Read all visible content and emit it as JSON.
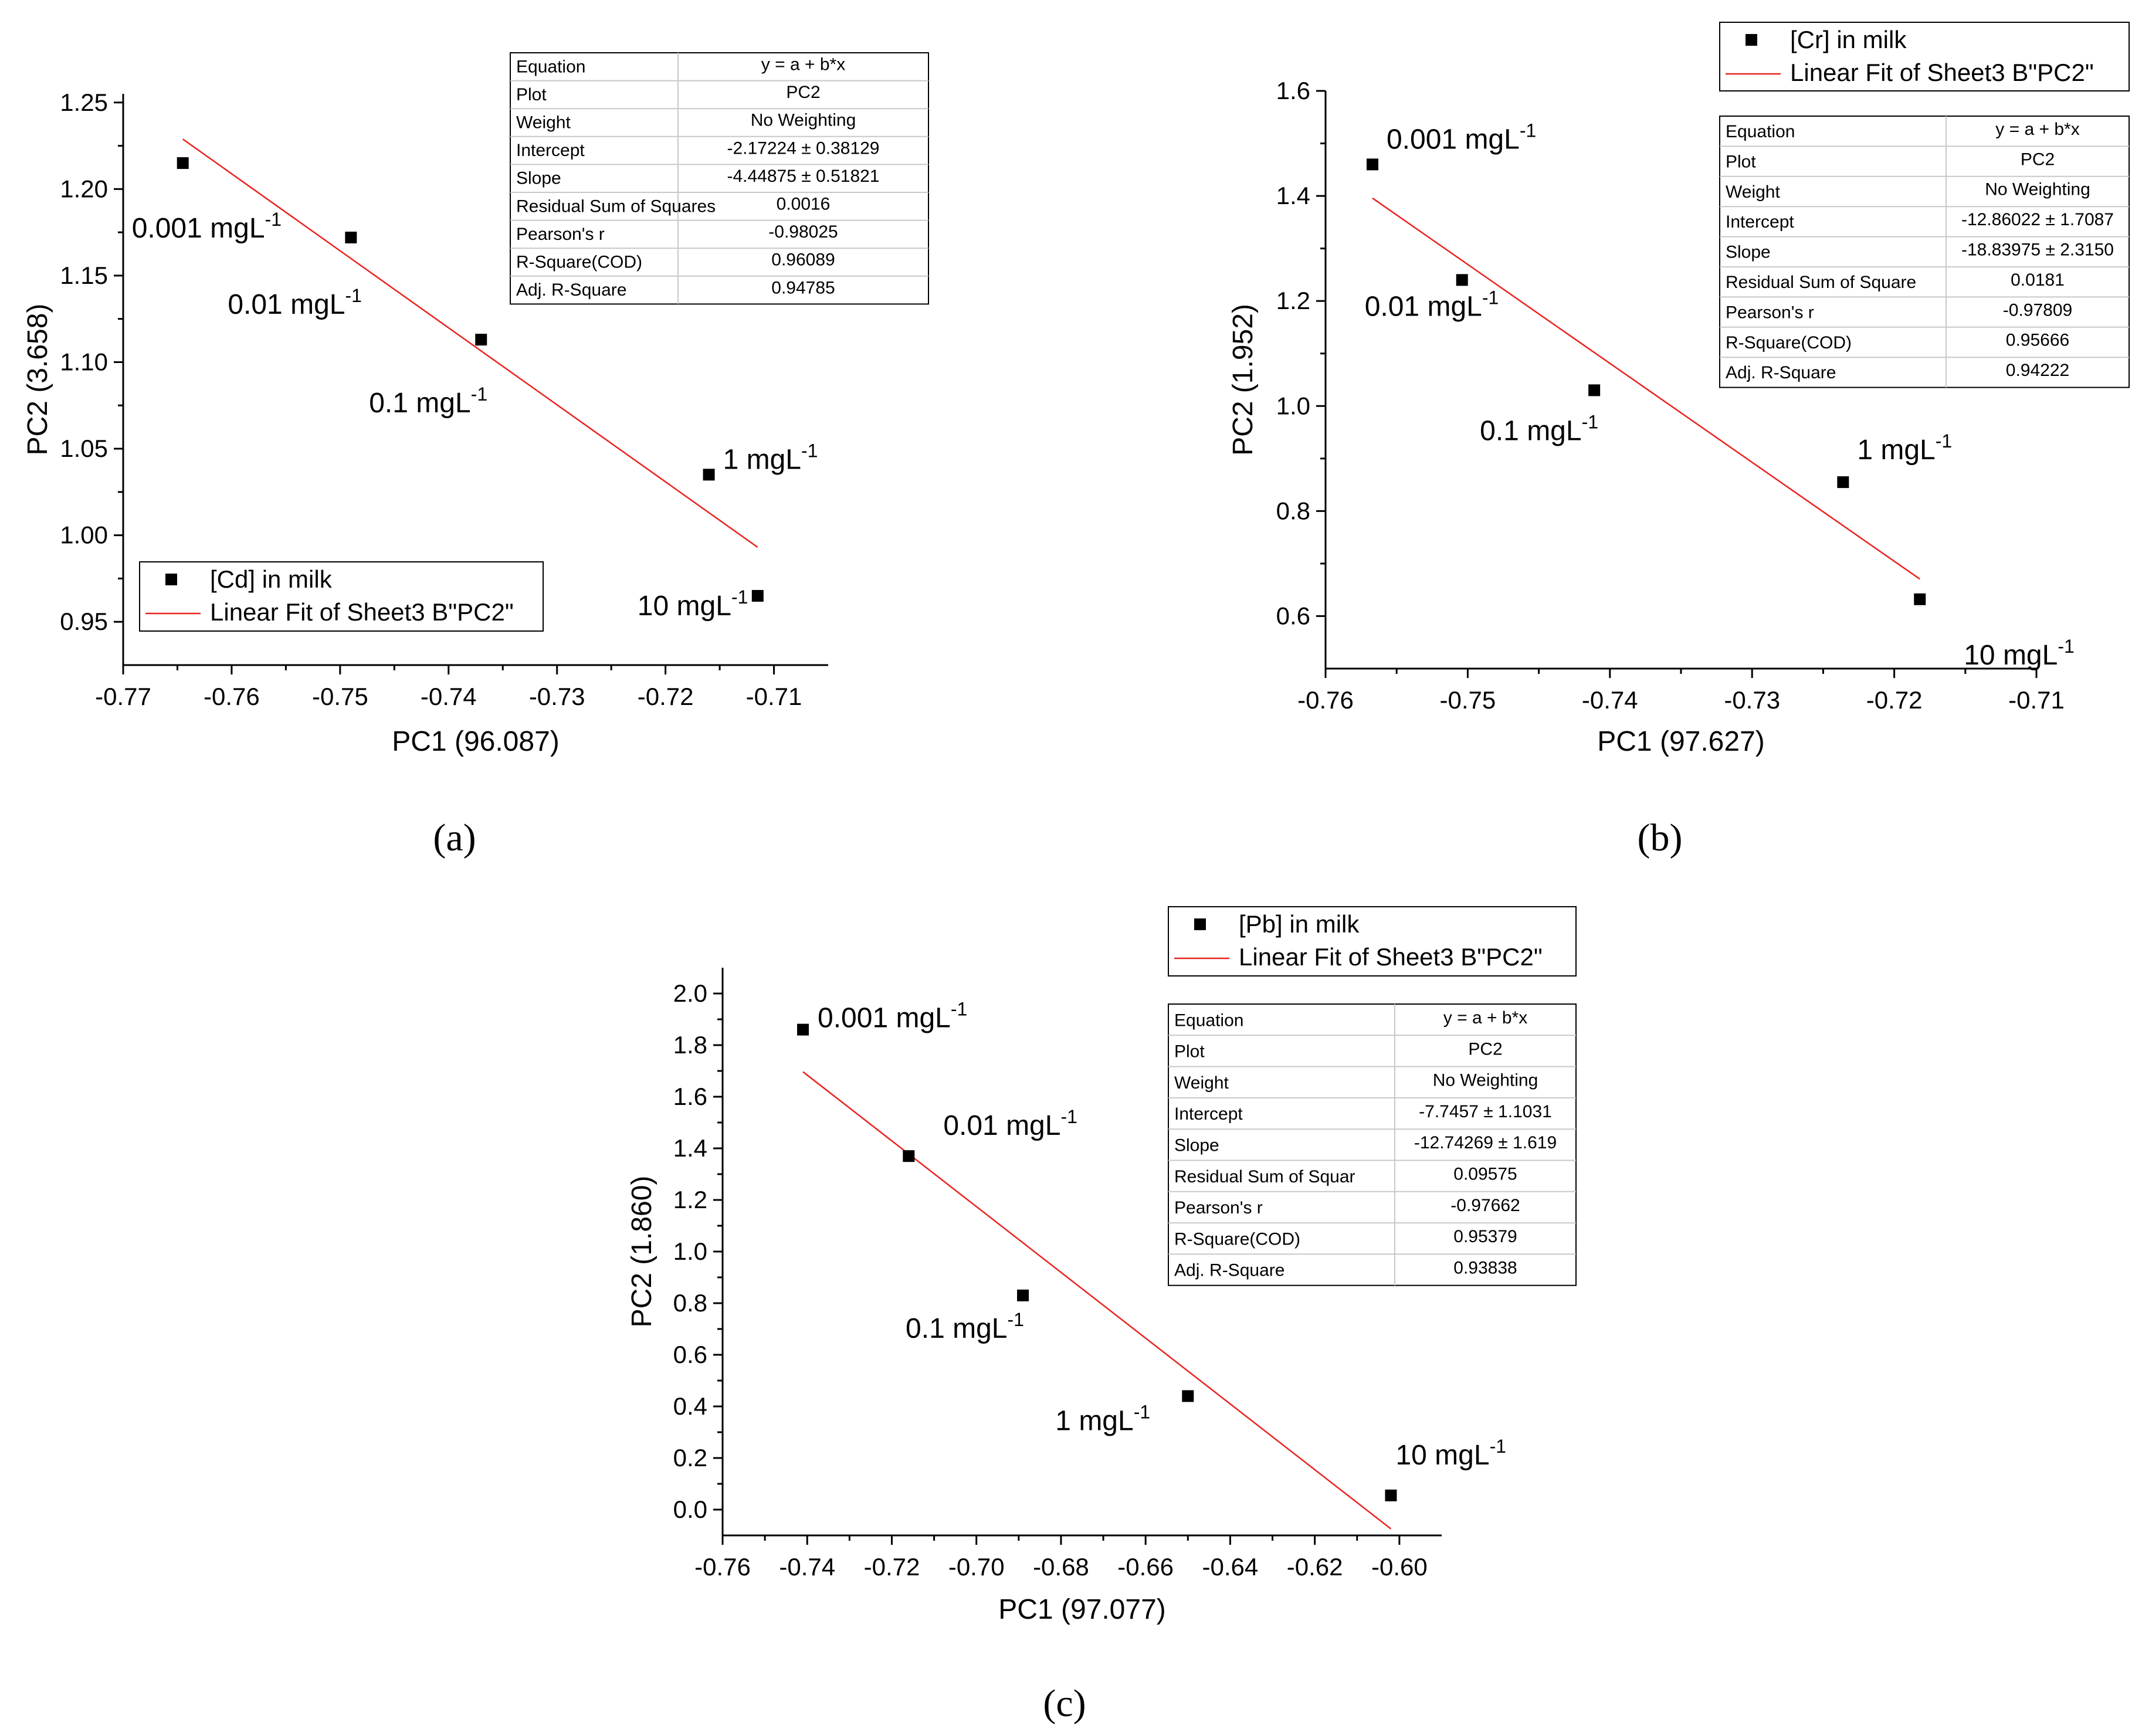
{
  "chart_data": [
    {
      "type": "scatter",
      "panel_label": "(a)",
      "xlabel": "PC1 (96.087)",
      "ylabel": "PC2 (3.658)",
      "xlim": [
        -0.77,
        -0.705
      ],
      "ylim": [
        0.925,
        1.255
      ],
      "xticks": [
        -0.77,
        -0.76,
        -0.75,
        -0.74,
        -0.73,
        -0.72,
        -0.71
      ],
      "xtick_labels": [
        "-0.77",
        "-0.76",
        "-0.75",
        "-0.74",
        "-0.73",
        "-0.72",
        "-0.71"
      ],
      "yticks": [
        0.95,
        1.0,
        1.05,
        1.1,
        1.15,
        1.2,
        1.25
      ],
      "ytick_labels": [
        "0.95",
        "1.00",
        "1.05",
        "1.10",
        "1.15",
        "1.20",
        "1.25"
      ],
      "points": [
        {
          "x": -0.7645,
          "y": 1.215,
          "label": "0.001 mgL",
          "sup": "-1"
        },
        {
          "x": -0.749,
          "y": 1.172,
          "label": "0.01 mgL",
          "sup": "-1"
        },
        {
          "x": -0.737,
          "y": 1.113,
          "label": "0.1 mgL",
          "sup": "-1"
        },
        {
          "x": -0.716,
          "y": 1.035,
          "label": "1 mgL",
          "sup": "-1"
        },
        {
          "x": -0.7115,
          "y": 0.965,
          "label": "10 mgL",
          "sup": "-1"
        }
      ],
      "fit": {
        "x_start": -0.7645,
        "x_end": -0.7115,
        "intercept": -2.17224,
        "slope": -4.44875
      },
      "legend": {
        "series": "[Cd] in milk",
        "fit": "Linear Fit of Sheet3 B\"PC2\""
      },
      "stats": [
        [
          "Equation",
          "y = a + b*x"
        ],
        [
          "Plot",
          "PC2"
        ],
        [
          "Weight",
          "No Weighting"
        ],
        [
          "Intercept",
          "-2.17224 ± 0.38129"
        ],
        [
          "Slope",
          "-4.44875 ± 0.51821"
        ],
        [
          "Residual Sum of Squares",
          "0.0016"
        ],
        [
          "Pearson's r",
          "-0.98025"
        ],
        [
          "R-Square(COD)",
          "0.96089"
        ],
        [
          "Adj. R-Square",
          "0.94785"
        ]
      ]
    },
    {
      "type": "scatter",
      "panel_label": "(b)",
      "xlabel": "PC1 (97.627)",
      "ylabel": "PC2 (1.952)",
      "xlim": [
        -0.76,
        -0.71
      ],
      "ylim": [
        0.5,
        1.6
      ],
      "xticks": [
        -0.76,
        -0.75,
        -0.74,
        -0.73,
        -0.72,
        -0.71
      ],
      "xtick_labels": [
        "-0.76",
        "-0.75",
        "-0.74",
        "-0.73",
        "-0.72",
        "-0.71"
      ],
      "yticks": [
        0.6,
        0.8,
        1.0,
        1.2,
        1.4,
        1.6
      ],
      "ytick_labels": [
        "0.6",
        "0.8",
        "1.0",
        "1.2",
        "1.4",
        "1.6"
      ],
      "points": [
        {
          "x": -0.7567,
          "y": 1.46,
          "label": "0.001 mgL",
          "sup": "-1"
        },
        {
          "x": -0.7504,
          "y": 1.24,
          "label": "0.01 mgL",
          "sup": "-1"
        },
        {
          "x": -0.7411,
          "y": 1.03,
          "label": "0.1 mgL",
          "sup": "-1"
        },
        {
          "x": -0.7236,
          "y": 0.855,
          "label": "1 mgL",
          "sup": "-1"
        },
        {
          "x": -0.7182,
          "y": 0.632,
          "label": "10 mgL",
          "sup": "-1"
        }
      ],
      "fit": {
        "x_start": -0.7567,
        "x_end": -0.7182,
        "intercept": -12.86022,
        "slope": -18.83975
      },
      "legend": {
        "series": "[Cr] in milk",
        "fit": "Linear Fit of Sheet3 B\"PC2\""
      },
      "stats": [
        [
          "Equation",
          "y = a + b*x"
        ],
        [
          "Plot",
          "PC2"
        ],
        [
          "Weight",
          "No Weighting"
        ],
        [
          "Intercept",
          "-12.86022 ± 1.7087"
        ],
        [
          "Slope",
          "-18.83975 ± 2.3150"
        ],
        [
          "Residual Sum of Square",
          "0.0181"
        ],
        [
          "Pearson's r",
          "-0.97809"
        ],
        [
          "R-Square(COD)",
          "0.95666"
        ],
        [
          "Adj. R-Square",
          "0.94222"
        ]
      ]
    },
    {
      "type": "scatter",
      "panel_label": "(c)",
      "xlabel": "PC1 (97.077)",
      "ylabel": "PC2 (1.860)",
      "xlim": [
        -0.76,
        -0.59
      ],
      "ylim": [
        -0.1,
        2.1
      ],
      "xticks": [
        -0.76,
        -0.74,
        -0.72,
        -0.7,
        -0.68,
        -0.66,
        -0.64,
        -0.62,
        -0.6
      ],
      "xtick_labels": [
        "-0.76",
        "-0.74",
        "-0.72",
        "-0.70",
        "-0.68",
        "-0.66",
        "-0.64",
        "-0.62",
        "-0.60"
      ],
      "yticks": [
        0.0,
        0.2,
        0.4,
        0.6,
        0.8,
        1.0,
        1.2,
        1.4,
        1.6,
        1.8,
        2.0
      ],
      "ytick_labels": [
        "0.0",
        "0.2",
        "0.4",
        "0.6",
        "0.8",
        "1.0",
        "1.2",
        "1.4",
        "1.6",
        "1.8",
        "2.0"
      ],
      "points": [
        {
          "x": -0.741,
          "y": 1.86,
          "label": "0.001 mgL",
          "sup": "-1"
        },
        {
          "x": -0.716,
          "y": 1.37,
          "label": "0.01 mgL",
          "sup": "-1"
        },
        {
          "x": -0.689,
          "y": 0.83,
          "label": "0.1 mgL",
          "sup": "-1"
        },
        {
          "x": -0.65,
          "y": 0.44,
          "label": "1 mgL",
          "sup": "-1"
        },
        {
          "x": -0.602,
          "y": 0.055,
          "label": "10 mgL",
          "sup": "-1"
        }
      ],
      "fit": {
        "x_start": -0.741,
        "x_end": -0.602,
        "intercept": -7.7457,
        "slope": -12.74269
      },
      "legend": {
        "series": "[Pb] in milk",
        "fit": "Linear Fit of Sheet3 B\"PC2\""
      },
      "stats": [
        [
          "Equation",
          "y = a + b*x"
        ],
        [
          "Plot",
          "PC2"
        ],
        [
          "Weight",
          "No Weighting"
        ],
        [
          "Intercept",
          "-7.7457 ± 1.1031"
        ],
        [
          "Slope",
          "-12.74269 ± 1.619"
        ],
        [
          "Residual Sum of Squar",
          "0.09575"
        ],
        [
          "Pearson's r",
          "-0.97662"
        ],
        [
          "R-Square(COD)",
          "0.95379"
        ],
        [
          "Adj. R-Square",
          "0.93838"
        ]
      ]
    }
  ]
}
